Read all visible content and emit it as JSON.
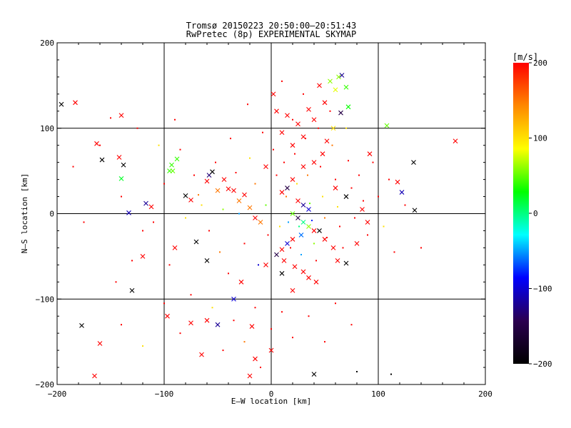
{
  "chart_data": {
    "type": "scatter",
    "title": "Tromsø 20150223 20:50:00–20:51:43",
    "subtitle": "RwPretec (8p) EXPERIMENTAL SKYMAP",
    "xlabel": "E–W location [km]",
    "ylabel": "N–S location [km]",
    "xlim": [
      -200,
      200
    ],
    "ylim": [
      -200,
      200
    ],
    "xticks": [
      -200,
      -100,
      0,
      100,
      200
    ],
    "yticks": [
      -200,
      -100,
      0,
      100,
      200
    ],
    "x_tick_labels": [
      "−200",
      "−100",
      "0",
      "100",
      "200"
    ],
    "y_tick_labels": [
      "−200",
      "−100",
      "0",
      "100",
      "200"
    ],
    "grid": true,
    "grid_lines": [
      -100,
      0,
      100
    ],
    "colorbar": {
      "label": "[m/s]",
      "range": [
        -200,
        200
      ],
      "ticks": [
        -200,
        -100,
        0,
        100,
        200
      ],
      "tick_labels": [
        "−200",
        "−100",
        "0",
        "100",
        "200"
      ],
      "colors": [
        "#000000",
        "#2b0050",
        "#0000ff",
        "#00ffff",
        "#00ff00",
        "#ffff00",
        "#ff8800",
        "#ff0000"
      ]
    },
    "marker_types": [
      "cross",
      "dot"
    ],
    "series": [
      {
        "marker": "cross",
        "points": [
          [
            -196,
            128,
            -200
          ],
          [
            -183,
            130,
            200
          ],
          [
            -163,
            82,
            200
          ],
          [
            -158,
            63,
            -200
          ],
          [
            -142,
            66,
            200
          ],
          [
            -140,
            41,
            20
          ],
          [
            -138,
            57,
            -200
          ],
          [
            -133,
            1,
            -110
          ],
          [
            -117,
            12,
            -120
          ],
          [
            -112,
            8,
            200
          ],
          [
            -95,
            50,
            40
          ],
          [
            -93,
            57,
            40
          ],
          [
            -92,
            50,
            50
          ],
          [
            -88,
            64,
            40
          ],
          [
            -80,
            21,
            -200
          ],
          [
            -75,
            16,
            200
          ],
          [
            -60,
            38,
            200
          ],
          [
            -58,
            45,
            -130
          ],
          [
            -55,
            49,
            -200
          ],
          [
            -50,
            27,
            150
          ],
          [
            -44,
            40,
            200
          ],
          [
            -40,
            29,
            200
          ],
          [
            -35,
            27,
            200
          ],
          [
            -30,
            15,
            150
          ],
          [
            -25,
            22,
            200
          ],
          [
            -20,
            7,
            150
          ],
          [
            -15,
            -5,
            200
          ],
          [
            -10,
            -10,
            150
          ],
          [
            -5,
            55,
            200
          ],
          [
            2,
            140,
            200
          ],
          [
            5,
            120,
            200
          ],
          [
            10,
            95,
            200
          ],
          [
            15,
            115,
            200
          ],
          [
            20,
            80,
            200
          ],
          [
            25,
            105,
            200
          ],
          [
            30,
            90,
            200
          ],
          [
            35,
            122,
            200
          ],
          [
            40,
            110,
            200
          ],
          [
            45,
            150,
            200
          ],
          [
            50,
            130,
            200
          ],
          [
            55,
            155,
            60
          ],
          [
            60,
            145,
            80
          ],
          [
            63,
            160,
            60
          ],
          [
            66,
            162,
            -120
          ],
          [
            70,
            148,
            40
          ],
          [
            72,
            125,
            30
          ],
          [
            65,
            118,
            -150
          ],
          [
            58,
            100,
            100
          ],
          [
            52,
            85,
            200
          ],
          [
            48,
            70,
            200
          ],
          [
            40,
            60,
            200
          ],
          [
            30,
            55,
            200
          ],
          [
            20,
            40,
            200
          ],
          [
            15,
            30,
            -150
          ],
          [
            10,
            25,
            200
          ],
          [
            25,
            15,
            200
          ],
          [
            30,
            10,
            -120
          ],
          [
            35,
            5,
            -100
          ],
          [
            20,
            0,
            50
          ],
          [
            25,
            -5,
            -150
          ],
          [
            30,
            -10,
            0
          ],
          [
            35,
            -15,
            60
          ],
          [
            40,
            -20,
            200
          ],
          [
            28,
            -25,
            -60
          ],
          [
            20,
            -30,
            200
          ],
          [
            15,
            -35,
            -100
          ],
          [
            10,
            -42,
            200
          ],
          [
            5,
            -48,
            -150
          ],
          [
            12,
            -55,
            200
          ],
          [
            22,
            -62,
            200
          ],
          [
            30,
            -68,
            200
          ],
          [
            35,
            -75,
            200
          ],
          [
            42,
            -80,
            200
          ],
          [
            45,
            -20,
            -200
          ],
          [
            50,
            -30,
            200
          ],
          [
            58,
            -40,
            200
          ],
          [
            62,
            -55,
            200
          ],
          [
            70,
            -58,
            -200
          ],
          [
            80,
            -35,
            200
          ],
          [
            90,
            -10,
            200
          ],
          [
            108,
            103,
            50
          ],
          [
            118,
            37,
            200
          ],
          [
            122,
            25,
            -110
          ],
          [
            133,
            60,
            -200
          ],
          [
            134,
            4,
            -200
          ],
          [
            172,
            85,
            200
          ],
          [
            -130,
            -90,
            -200
          ],
          [
            -90,
            -40,
            200
          ],
          [
            -70,
            -33,
            -200
          ],
          [
            -60,
            -55,
            -200
          ],
          [
            -50,
            -130,
            -120
          ],
          [
            -35,
            -100,
            -100
          ],
          [
            -28,
            -80,
            200
          ],
          [
            -18,
            -132,
            200
          ],
          [
            -15,
            -170,
            200
          ],
          [
            -20,
            -190,
            200
          ],
          [
            -65,
            -165,
            200
          ],
          [
            -75,
            -128,
            200
          ],
          [
            -60,
            -125,
            200
          ],
          [
            -97,
            -120,
            200
          ],
          [
            -160,
            -152,
            200
          ],
          [
            -165,
            -190,
            200
          ],
          [
            -177,
            -131,
            -200
          ],
          [
            40,
            -188,
            -200
          ],
          [
            0,
            -160,
            200
          ],
          [
            10,
            -70,
            -200
          ],
          [
            20,
            -90,
            200
          ],
          [
            -5,
            -60,
            200
          ],
          [
            60,
            30,
            200
          ],
          [
            70,
            20,
            -200
          ],
          [
            85,
            5,
            200
          ],
          [
            92,
            70,
            200
          ],
          [
            -120,
            -50,
            200
          ],
          [
            -140,
            115,
            200
          ]
        ]
      },
      {
        "marker": "dot",
        "points": [
          [
            -185,
            55,
            200
          ],
          [
            -175,
            -10,
            200
          ],
          [
            -150,
            112,
            200
          ],
          [
            -130,
            -55,
            200
          ],
          [
            -125,
            100,
            200
          ],
          [
            -110,
            -10,
            200
          ],
          [
            -105,
            80,
            100
          ],
          [
            -100,
            35,
            200
          ],
          [
            -95,
            -60,
            200
          ],
          [
            -85,
            75,
            200
          ],
          [
            -80,
            -5,
            100
          ],
          [
            -72,
            45,
            200
          ],
          [
            -68,
            22,
            150
          ],
          [
            -65,
            10,
            100
          ],
          [
            -58,
            -20,
            200
          ],
          [
            -52,
            60,
            200
          ],
          [
            -48,
            -45,
            150
          ],
          [
            -45,
            5,
            60
          ],
          [
            -40,
            -70,
            200
          ],
          [
            -38,
            88,
            200
          ],
          [
            -33,
            48,
            200
          ],
          [
            -30,
            0,
            -50
          ],
          [
            -25,
            -35,
            200
          ],
          [
            -22,
            128,
            200
          ],
          [
            -20,
            65,
            100
          ],
          [
            -15,
            35,
            150
          ],
          [
            -12,
            -60,
            -100
          ],
          [
            -8,
            95,
            200
          ],
          [
            -5,
            10,
            50
          ],
          [
            -3,
            -25,
            200
          ],
          [
            2,
            75,
            200
          ],
          [
            5,
            45,
            200
          ],
          [
            8,
            -15,
            100
          ],
          [
            10,
            155,
            200
          ],
          [
            12,
            60,
            200
          ],
          [
            14,
            20,
            150
          ],
          [
            16,
            -10,
            -50
          ],
          [
            18,
            -40,
            200
          ],
          [
            20,
            110,
            200
          ],
          [
            22,
            70,
            200
          ],
          [
            24,
            35,
            100
          ],
          [
            26,
            -15,
            0
          ],
          [
            28,
            -48,
            -50
          ],
          [
            30,
            140,
            200
          ],
          [
            32,
            88,
            200
          ],
          [
            34,
            45,
            150
          ],
          [
            36,
            12,
            50
          ],
          [
            38,
            -8,
            -80
          ],
          [
            40,
            -35,
            60
          ],
          [
            42,
            -55,
            200
          ],
          [
            44,
            100,
            200
          ],
          [
            46,
            55,
            200
          ],
          [
            48,
            20,
            100
          ],
          [
            50,
            -5,
            150
          ],
          [
            52,
            -28,
            200
          ],
          [
            55,
            120,
            200
          ],
          [
            57,
            80,
            150
          ],
          [
            60,
            40,
            200
          ],
          [
            62,
            8,
            100
          ],
          [
            64,
            -15,
            200
          ],
          [
            67,
            -40,
            200
          ],
          [
            70,
            100,
            100
          ],
          [
            72,
            62,
            200
          ],
          [
            75,
            30,
            200
          ],
          [
            78,
            -5,
            200
          ],
          [
            82,
            45,
            200
          ],
          [
            86,
            15,
            200
          ],
          [
            90,
            -25,
            200
          ],
          [
            95,
            60,
            200
          ],
          [
            100,
            20,
            200
          ],
          [
            105,
            -15,
            100
          ],
          [
            110,
            40,
            200
          ],
          [
            115,
            -45,
            200
          ],
          [
            125,
            10,
            200
          ],
          [
            140,
            -40,
            200
          ],
          [
            -140,
            -130,
            200
          ],
          [
            -120,
            -155,
            100
          ],
          [
            -100,
            -105,
            200
          ],
          [
            -85,
            -140,
            200
          ],
          [
            -75,
            -95,
            200
          ],
          [
            -55,
            -110,
            100
          ],
          [
            -45,
            -160,
            200
          ],
          [
            -35,
            -125,
            200
          ],
          [
            -25,
            -150,
            150
          ],
          [
            -15,
            -110,
            200
          ],
          [
            -10,
            -180,
            200
          ],
          [
            0,
            -135,
            200
          ],
          [
            10,
            -115,
            200
          ],
          [
            20,
            -145,
            200
          ],
          [
            35,
            -120,
            200
          ],
          [
            50,
            -150,
            200
          ],
          [
            60,
            -105,
            200
          ],
          [
            75,
            -130,
            200
          ],
          [
            80,
            -185,
            -200
          ],
          [
            112,
            -188,
            -200
          ],
          [
            -160,
            80,
            200
          ],
          [
            -140,
            20,
            200
          ],
          [
            -120,
            -20,
            200
          ],
          [
            -145,
            -80,
            200
          ],
          [
            -90,
            110,
            200
          ]
        ]
      }
    ]
  }
}
